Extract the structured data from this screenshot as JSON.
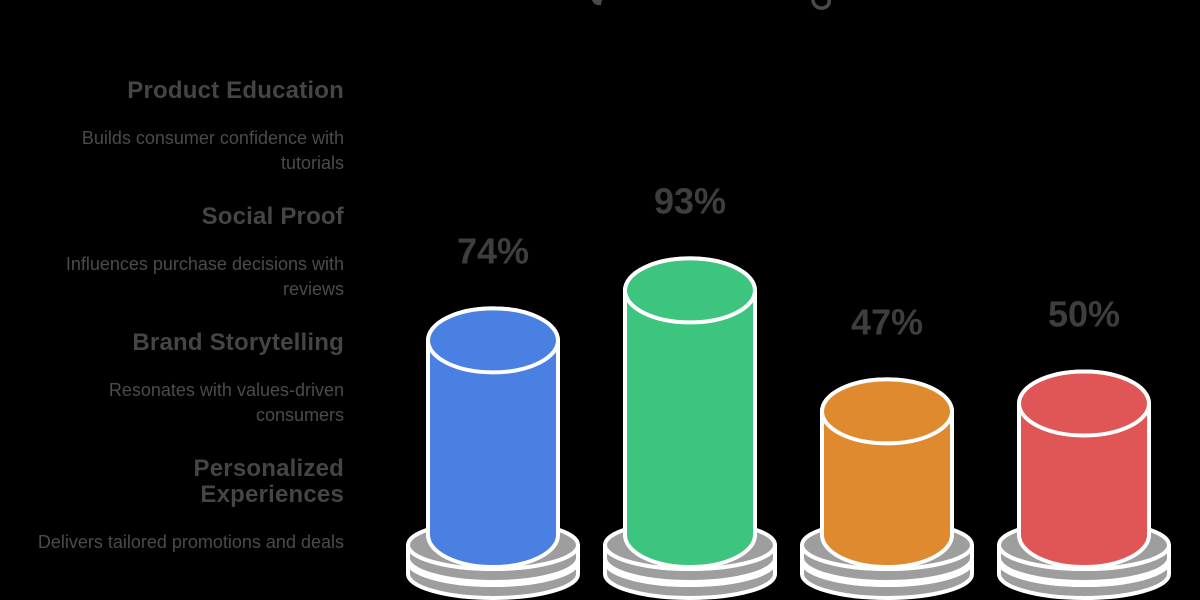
{
  "page": {
    "background_color": "#000000"
  },
  "left_panel": {
    "sections": [
      {
        "title": "Product Education",
        "description": "Builds consumer confidence with tutorials"
      },
      {
        "title": "Social Proof",
        "description": "Influences purchase decisions with reviews"
      },
      {
        "title": "Brand Storytelling",
        "description": "Resonates with values-driven consumers"
      },
      {
        "title": "Personalized Experiences",
        "description": "Delivers tailored promotions and deals"
      }
    ],
    "title_color": "#454545",
    "description_color": "#4b4b4b"
  },
  "chart_data": {
    "type": "bar",
    "variant": "3d-cylinder",
    "categories": [
      "Product Education",
      "Social Proof",
      "Brand Storytelling",
      "Personalized Experiences"
    ],
    "values": [
      74,
      93,
      47,
      50
    ],
    "value_labels": [
      "74%",
      "93%",
      "47%",
      "50%"
    ],
    "unit": "%",
    "ylim": [
      0,
      100
    ],
    "series_colors": [
      "#4a80e1",
      "#3dc47e",
      "#e08a2f",
      "#e05555"
    ],
    "pedestal_color": "#9e9e9e",
    "outline_color": "#ffffff",
    "label_color": "#3e3e3e",
    "grid": false,
    "axes_visible": false,
    "legend": "none",
    "title": ""
  }
}
